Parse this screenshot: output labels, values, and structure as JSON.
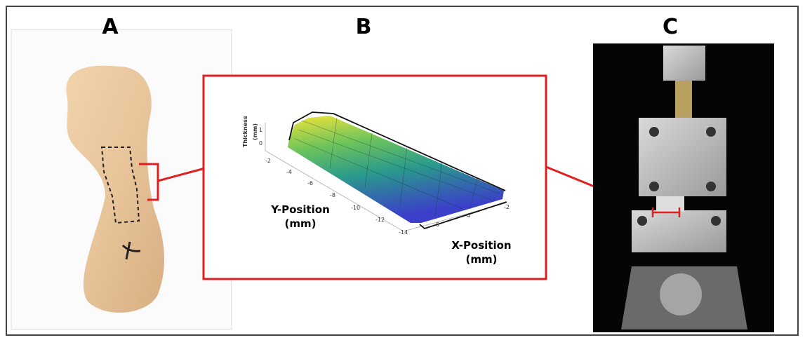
{
  "panels": [
    {
      "label": "A"
    },
    {
      "label": "B"
    },
    {
      "label": "C"
    }
  ],
  "plot": {
    "z_label": [
      "Thickness",
      "(mm)"
    ],
    "y_label": [
      "Y-Position",
      "(mm)"
    ],
    "x_label": [
      "X-Position",
      "(mm)"
    ],
    "z_ticks": [
      "1",
      "0"
    ],
    "y_ticks": [
      "-2",
      "-4",
      "-6",
      "-8",
      "-10",
      "-12",
      "-14"
    ],
    "x_ticks": [
      "-6",
      "-4",
      "-2"
    ]
  }
}
